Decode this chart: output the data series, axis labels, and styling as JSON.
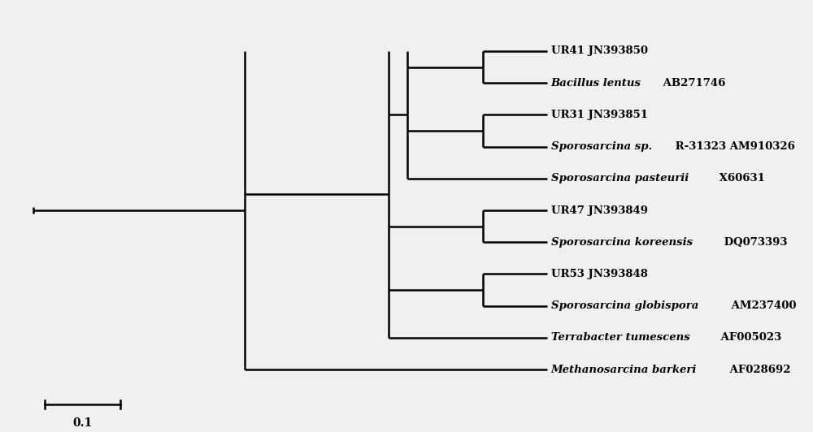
{
  "background_color": "#f0f0f0",
  "line_color": "#000000",
  "line_width": 1.8,
  "scale_bar_value": "0.1",
  "taxa": [
    "UR41 JN393850",
    "Bacillus lentus AB271746",
    "UR31 JN393851",
    "Sporosarcina sp. R-31323 AM910326",
    "Sporosarcina pasteurii X60631",
    "UR47 JN393849",
    "Sporosarcina koreensis DQ073393",
    "UR53 JN393848",
    "Sporosarcina globispora AM237400",
    "Terrabacter tumescens AF005023",
    "Methanosarcina barkeri AF028692"
  ],
  "label_parts": [
    [
      "normal",
      "UR41 JN393850"
    ],
    [
      "italic",
      "Bacillus lentus",
      "normal",
      " AB271746"
    ],
    [
      "normal",
      "UR31 JN393851"
    ],
    [
      "italic",
      "Sporosarcina sp.",
      "normal",
      " R-31323 AM910326"
    ],
    [
      "italic",
      "Sporosarcina pasteurii",
      "normal",
      " X60631"
    ],
    [
      "normal",
      "UR47 JN393849"
    ],
    [
      "italic",
      "Sporosarcina koreensis",
      "normal",
      " DQ073393"
    ],
    [
      "normal",
      "UR53 JN393848"
    ],
    [
      "italic",
      "Sporosarcina globispora",
      "normal",
      " AM237400"
    ],
    [
      "italic",
      "Terrabacter tumescens",
      "normal",
      " AF005023"
    ],
    [
      "italic",
      "Methanosarcina barkeri",
      "normal",
      " AF028692"
    ]
  ]
}
